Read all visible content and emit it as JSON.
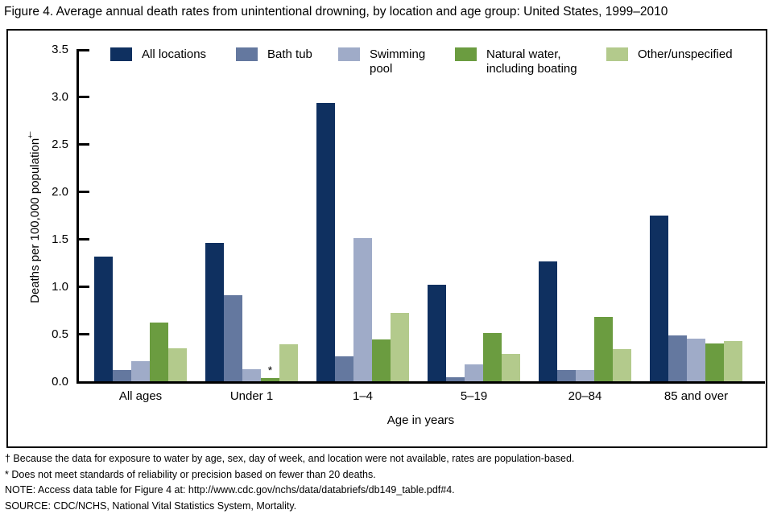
{
  "chart_data": {
    "type": "bar",
    "title": "Figure 4. Average annual death rates from unintentional drowning, by location and age group: United States, 1999–2010",
    "categories": [
      "All ages",
      "Under 1",
      "1–4",
      "5–19",
      "20–84",
      "85 and over"
    ],
    "series": [
      {
        "name": "All locations",
        "color": "#0f3060",
        "values": [
          1.31,
          1.46,
          2.93,
          1.02,
          1.26,
          1.75
        ]
      },
      {
        "name": "Bath tub",
        "color": "#64789f",
        "values": [
          0.12,
          0.91,
          0.26,
          0.04,
          0.12,
          0.48
        ]
      },
      {
        "name": "Swimming pool",
        "color": "#9fabc8",
        "values": [
          0.21,
          0.13,
          1.51,
          0.18,
          0.12,
          0.45
        ]
      },
      {
        "name": "Natural water, including boating",
        "color": "#6b9c40",
        "values": [
          0.62,
          0.03,
          0.44,
          0.51,
          0.68,
          0.4
        ],
        "annotations": {
          "1": "*"
        }
      },
      {
        "name": "Other/unspecified",
        "color": "#b3ca8c",
        "values": [
          0.35,
          0.39,
          0.72,
          0.29,
          0.34,
          0.42
        ]
      }
    ],
    "xlabel": "Age in years",
    "ylabel": "Deaths per 100,000 population",
    "ylabel_superscript": "†",
    "ylim": [
      0,
      3.5
    ],
    "yticks": [
      "0.0",
      "0.5",
      "1.0",
      "1.5",
      "2.0",
      "2.5",
      "3.0",
      "3.5"
    ],
    "grid": false,
    "legend_position": "top"
  },
  "footnotes": [
    "† Because the data for exposure to water by age, sex, day of week, and location were not available, rates are population-based.",
    "* Does not meet standards of reliability or precision based on fewer than 20 deaths.",
    "NOTE: Access data table for Figure 4 at: http://www.cdc.gov/nchs/data/databriefs/db149_table.pdf#4.",
    "SOURCE: CDC/NCHS, National Vital Statistics System, Mortality."
  ]
}
